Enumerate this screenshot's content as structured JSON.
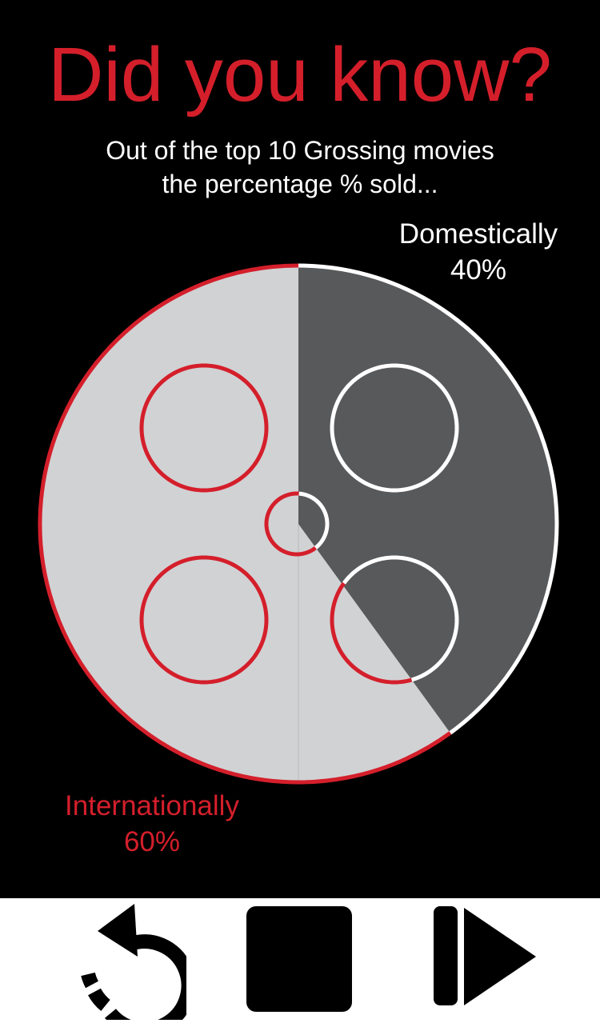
{
  "header": {
    "title": "Did you know?",
    "subtitle_line1": "Out of the top 10 Grossing movies",
    "subtitle_line2": "the percentage % sold..."
  },
  "colors": {
    "accent_red": "#d41f2b",
    "domestic_fill": "#58595b",
    "international_fill": "#d1d2d4",
    "background": "#000000",
    "controls_bar": "#ffffff"
  },
  "chart_data": {
    "type": "pie",
    "categories": [
      "Domestically",
      "Internationally"
    ],
    "values": [
      40,
      60
    ],
    "labels": [
      {
        "name": "Domestically",
        "value_text": "40%"
      },
      {
        "name": "Internationally",
        "value_text": "60%"
      }
    ],
    "title": "Did you know?",
    "subtitle": "Out of the top 10 Grossing movies the percentage % sold...",
    "style": "film-reel"
  },
  "controls": {
    "replay_icon": "replay-icon",
    "stop_icon": "stop-icon",
    "play_icon": "play-pause-icon"
  }
}
